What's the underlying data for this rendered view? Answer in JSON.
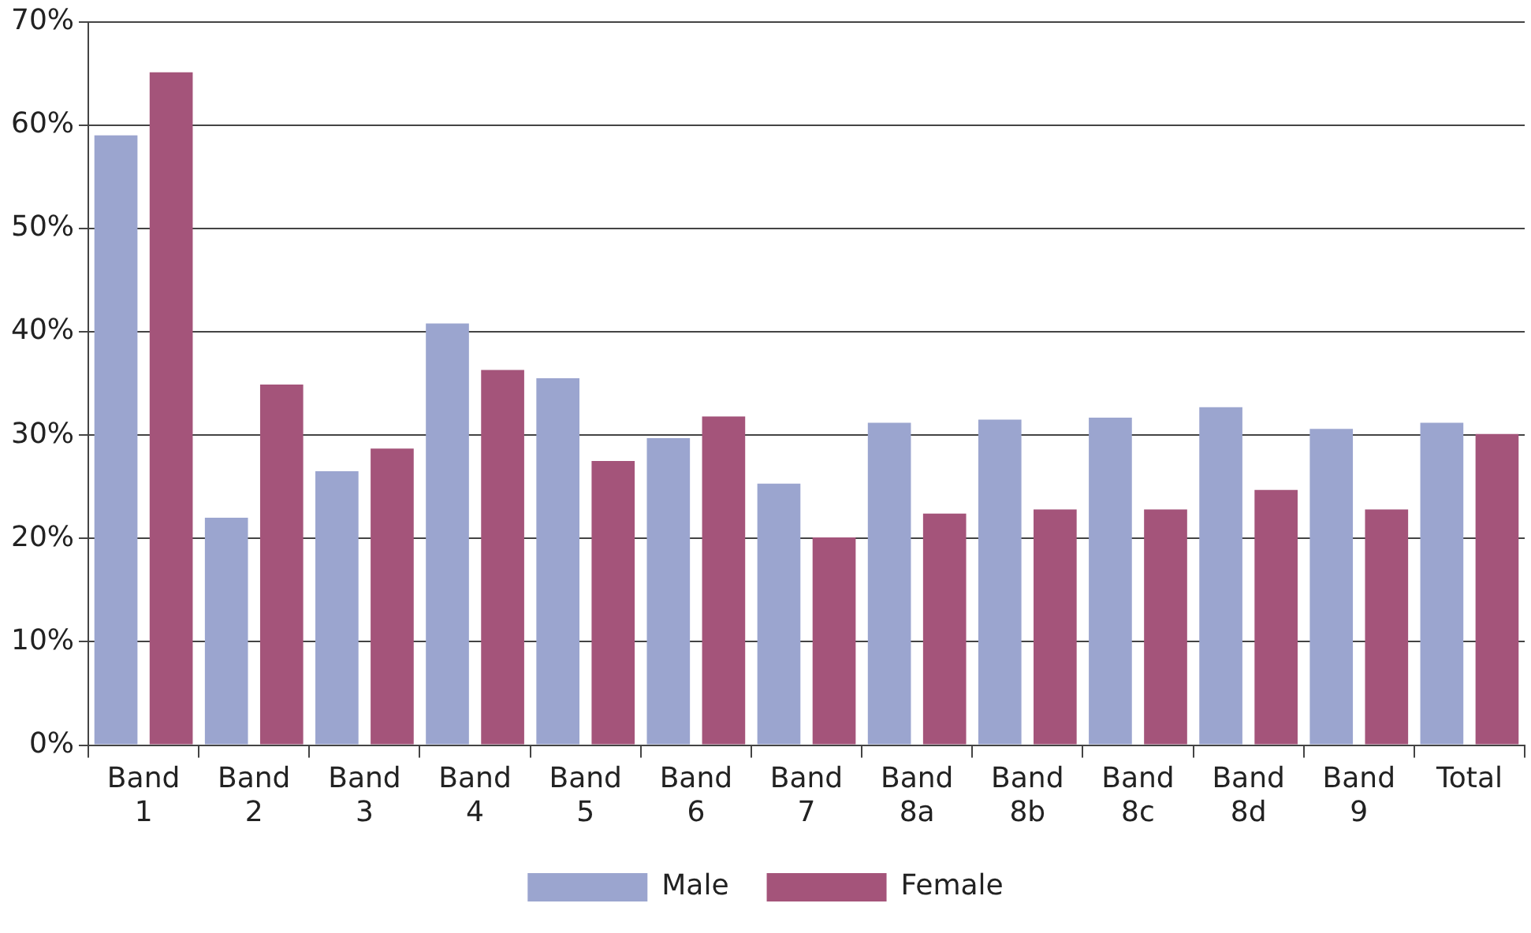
{
  "chart_data": {
    "type": "bar",
    "categories": [
      "Band 1",
      "Band 2",
      "Band 3",
      "Band 4",
      "Band 5",
      "Band 6",
      "Band 7",
      "Band 8a",
      "Band 8b",
      "Band 8c",
      "Band 8d",
      "Band 9",
      "Total"
    ],
    "series": [
      {
        "name": "Male",
        "color": "#9ba5cf",
        "values": [
          59,
          22,
          26.5,
          40.8,
          35.5,
          29.7,
          25.3,
          31.2,
          31.5,
          31.7,
          32.7,
          30.6,
          31.2
        ]
      },
      {
        "name": "Female",
        "color": "#a4547a",
        "values": [
          65.1,
          34.9,
          28.7,
          36.3,
          27.5,
          31.8,
          20.1,
          22.4,
          22.8,
          22.8,
          24.7,
          22.8,
          30.1
        ]
      }
    ],
    "ylim": [
      0,
      70
    ],
    "yticks": [
      {
        "value": 0,
        "label": "0%"
      },
      {
        "value": 10,
        "label": "10%"
      },
      {
        "value": 20,
        "label": "20%"
      },
      {
        "value": 30,
        "label": "30%"
      },
      {
        "value": 40,
        "label": "40%"
      },
      {
        "value": 50,
        "label": "50%"
      },
      {
        "value": 60,
        "label": "60%"
      },
      {
        "value": 70,
        "label": "70%"
      }
    ],
    "grid": "y",
    "legend": "bottom"
  }
}
